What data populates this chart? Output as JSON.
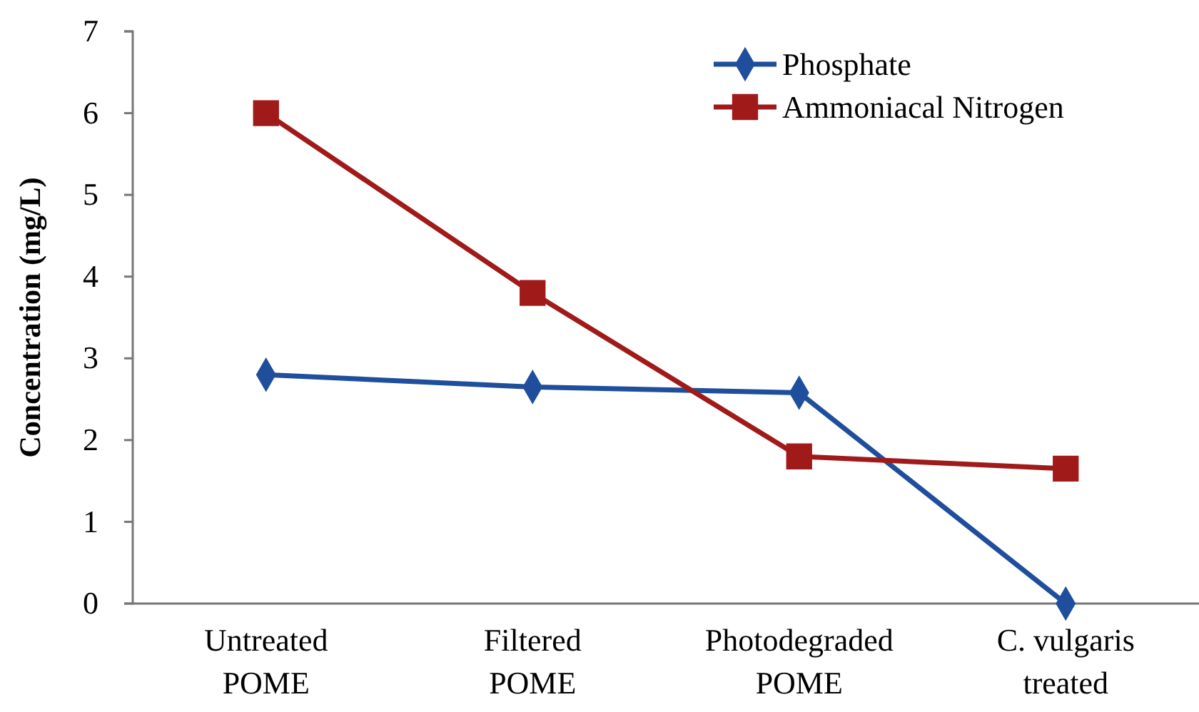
{
  "chart_data": {
    "type": "line",
    "ylabel": "Concentration (mg/L)",
    "categories": [
      "Untreated\nPOME",
      "Filtered\nPOME",
      "Photodegraded\nPOME",
      "C. vulgaris\ntreated"
    ],
    "series": [
      {
        "name": "Phosphate",
        "color": "#1f4e9c",
        "marker": "diamond",
        "values": [
          2.8,
          2.65,
          2.58,
          0
        ]
      },
      {
        "name": "Ammoniacal Nitrogen",
        "color": "#a11a1a",
        "marker": "square",
        "values": [
          6.0,
          3.8,
          1.8,
          1.65
        ]
      }
    ],
    "ylim": [
      0,
      7
    ],
    "yticks": [
      0,
      1,
      2,
      3,
      4,
      5,
      6,
      7
    ],
    "grid": false,
    "legend": "top right",
    "line_style": "solid"
  }
}
